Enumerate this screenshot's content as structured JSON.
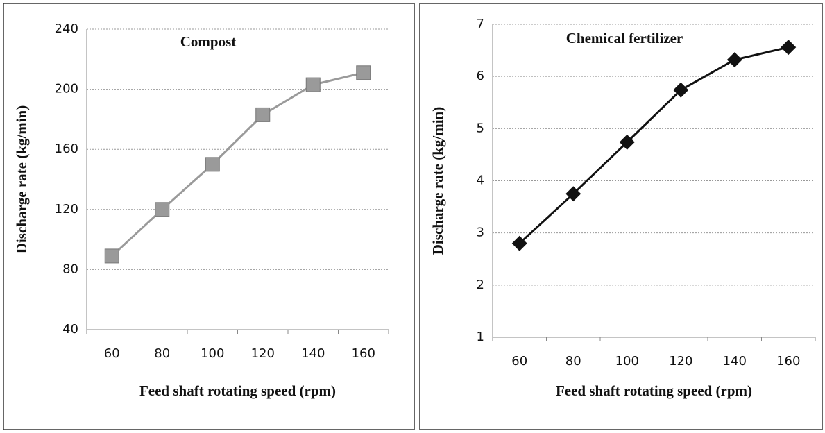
{
  "chart_data": [
    {
      "type": "line",
      "title": "Compost",
      "xlabel": "Feed shaft rotating speed (rpm)",
      "ylabel": "Discharge rate (kg/min)",
      "categories": [
        "60",
        "80",
        "100",
        "120",
        "140",
        "160"
      ],
      "series": [
        {
          "color": "#9a9a9a",
          "marker": "square",
          "values": [
            89,
            120,
            150,
            183,
            203,
            211
          ]
        }
      ],
      "ylim": [
        40,
        240
      ],
      "yticks": [
        40,
        80,
        120,
        160,
        200,
        240
      ],
      "grid": true
    },
    {
      "type": "line",
      "title": "Chemical fertilizer",
      "xlabel": "Feed shaft rotating speed (rpm)",
      "ylabel": "Discharge rate (kg/min)",
      "categories": [
        "60",
        "80",
        "100",
        "120",
        "140",
        "160"
      ],
      "series": [
        {
          "color": "#111111",
          "marker": "diamond",
          "values": [
            2.8,
            3.75,
            4.74,
            5.74,
            6.32,
            6.56
          ]
        }
      ],
      "ylim": [
        1,
        7
      ],
      "yticks": [
        1,
        2,
        3,
        4,
        5,
        6,
        7
      ],
      "grid": true
    }
  ]
}
